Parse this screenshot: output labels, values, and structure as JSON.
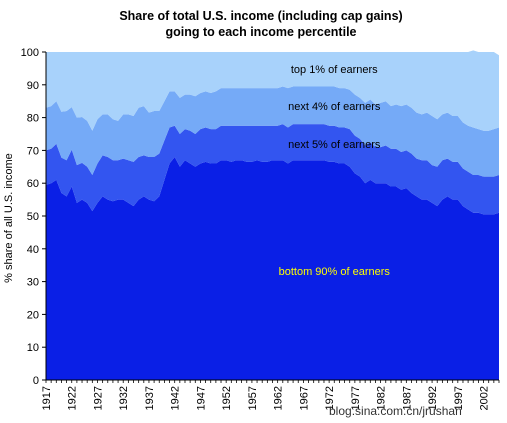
{
  "chart_data": {
    "type": "area",
    "stacked": true,
    "title": "Share of total U.S. income (including cap gains)",
    "subtitle": "going to each income percentile",
    "xlabel": "",
    "ylabel": "% share of all U.S. income",
    "ylim": [
      0,
      100
    ],
    "yticks": [
      "0",
      "10",
      "20",
      "30",
      "40",
      "50",
      "60",
      "70",
      "80",
      "90",
      "100"
    ],
    "xticks": [
      "1917",
      "1922",
      "1927",
      "1932",
      "1937",
      "1942",
      "1947",
      "1952",
      "1957",
      "1962",
      "1967",
      "1972",
      "1977",
      "1982",
      "1987",
      "1992",
      "1997",
      "2002"
    ],
    "grid": false,
    "x": [
      1917,
      1918,
      1919,
      1920,
      1921,
      1922,
      1923,
      1924,
      1925,
      1926,
      1927,
      1928,
      1929,
      1930,
      1931,
      1932,
      1933,
      1934,
      1935,
      1936,
      1937,
      1938,
      1939,
      1940,
      1941,
      1942,
      1943,
      1944,
      1945,
      1946,
      1947,
      1948,
      1949,
      1950,
      1951,
      1952,
      1953,
      1954,
      1955,
      1956,
      1957,
      1958,
      1959,
      1960,
      1961,
      1962,
      1963,
      1964,
      1965,
      1966,
      1967,
      1968,
      1969,
      1970,
      1971,
      1972,
      1973,
      1974,
      1975,
      1976,
      1977,
      1978,
      1979,
      1980,
      1981,
      1982,
      1983,
      1984,
      1985,
      1986,
      1987,
      1988,
      1989,
      1990,
      1991,
      1992,
      1993,
      1994,
      1995,
      1996,
      1997,
      1998,
      1999,
      2000,
      2001,
      2002,
      2003,
      2004,
      2005
    ],
    "series": [
      {
        "name": "bottom 90% of earners",
        "color": "#0a1fe6",
        "values": [
          59.5,
          60,
          61,
          57,
          56,
          59,
          54,
          55,
          54,
          51.5,
          54,
          56,
          55,
          54.5,
          55,
          55,
          54,
          53,
          55,
          56,
          55,
          54.5,
          56,
          61,
          66,
          68,
          65,
          67,
          66,
          65,
          66,
          66.5,
          66,
          66,
          67,
          67,
          66.5,
          67,
          67,
          66.5,
          66.5,
          67,
          66.5,
          66.5,
          67,
          67,
          67,
          66,
          67,
          67,
          67,
          67,
          67,
          67,
          67,
          66.5,
          66.5,
          66,
          66,
          65,
          63,
          62,
          60,
          61,
          60,
          60,
          60,
          59,
          59,
          58,
          58.5,
          57,
          56,
          55,
          55,
          54,
          53,
          55,
          56,
          55,
          55,
          53,
          52,
          51,
          51,
          50.5,
          50.5,
          50.5,
          51
        ]
      },
      {
        "name": "next 5% of earners",
        "color": "#3355f0",
        "values": [
          10.5,
          10.5,
          11,
          10.8,
          11,
          11.2,
          11.5,
          11.2,
          11,
          11,
          12,
          12.5,
          13,
          12.5,
          12,
          12.5,
          13,
          13.5,
          13,
          12.5,
          13,
          13.5,
          13,
          12,
          11,
          9.5,
          10,
          9.5,
          10,
          10,
          10.5,
          10.5,
          10.5,
          10.5,
          10.5,
          10.5,
          11,
          10.5,
          10.5,
          11,
          11,
          10.5,
          11,
          11,
          10.5,
          10.5,
          11,
          11,
          11,
          11,
          11,
          11,
          11,
          11,
          11,
          11,
          11,
          11,
          11,
          11.5,
          11.5,
          11.5,
          11.5,
          11.5,
          11,
          11,
          11.5,
          11.5,
          11.5,
          11.5,
          11.5,
          12,
          11.5,
          12,
          12,
          11.5,
          12,
          12,
          11.5,
          11.5,
          11.5,
          11.5,
          11.5,
          11.5,
          11.5,
          11.5,
          11.5,
          11.5,
          11.5
        ]
      },
      {
        "name": "next 4% of earners",
        "color": "#75aaf7",
        "values": [
          13,
          13,
          13,
          14,
          15,
          13,
          14.5,
          14,
          14,
          13.5,
          13.5,
          12.5,
          13,
          12.5,
          12,
          13.5,
          14,
          14,
          15,
          15,
          13.5,
          14,
          13,
          12,
          11,
          10.5,
          11,
          10.5,
          11,
          11.5,
          11,
          11,
          11,
          11.5,
          11.5,
          11.5,
          11.5,
          11.5,
          11.5,
          11.5,
          11.5,
          11.5,
          11.5,
          11.5,
          11.5,
          11.5,
          11.5,
          12,
          11.5,
          11.5,
          11.5,
          11.5,
          11.5,
          11.5,
          11.5,
          12,
          12,
          12,
          12,
          12,
          12.5,
          12.5,
          13,
          13,
          13,
          13.5,
          13.5,
          13,
          13.5,
          14,
          14,
          14,
          14,
          14,
          14.5,
          15,
          14.5,
          14,
          14,
          14,
          14,
          14,
          14,
          14.5,
          14,
          14,
          14,
          14.5,
          14.5
        ]
      },
      {
        "name": "top 1% of earners",
        "color": "#a8d2fb",
        "values": [
          17,
          16.5,
          15,
          18.2,
          18,
          16.8,
          20,
          19.8,
          21,
          24,
          20.5,
          19,
          19,
          20.5,
          21,
          19,
          19,
          19.5,
          17,
          16.5,
          18.5,
          18,
          18,
          15,
          12,
          12,
          14,
          13,
          13,
          13.5,
          12.5,
          12,
          12.5,
          12,
          11,
          11,
          11,
          11,
          11,
          11,
          11,
          11,
          11,
          11,
          11,
          11,
          10.5,
          11,
          10.5,
          10.5,
          10.5,
          10.5,
          10.5,
          10.5,
          10.5,
          10.5,
          10.5,
          11,
          11,
          11.5,
          13,
          14,
          15.5,
          14.5,
          16,
          15.5,
          15,
          16.5,
          16,
          16.5,
          16,
          17,
          18.5,
          19,
          18.5,
          19.5,
          20.5,
          19,
          18.5,
          19.5,
          19.5,
          21.5,
          22.5,
          23.5,
          23.5,
          24,
          24,
          23.5,
          22
        ]
      }
    ],
    "annotations": [
      {
        "text": "top 1% of earners",
        "series": "top 1% of earners",
        "color": "#000000"
      },
      {
        "text": "next 4% of earners",
        "series": "next 4% of earners",
        "color": "#000000"
      },
      {
        "text": "next 5% of earners",
        "series": "next 5% of earners",
        "color": "#000000"
      },
      {
        "text": "bottom 90% of earners",
        "series": "bottom 90% of earners",
        "color": "#ffff00"
      }
    ]
  },
  "watermark": "blog.sina.com.cn/jrushan",
  "colors": {
    "axis": "#000000",
    "background": "#ffffff"
  }
}
